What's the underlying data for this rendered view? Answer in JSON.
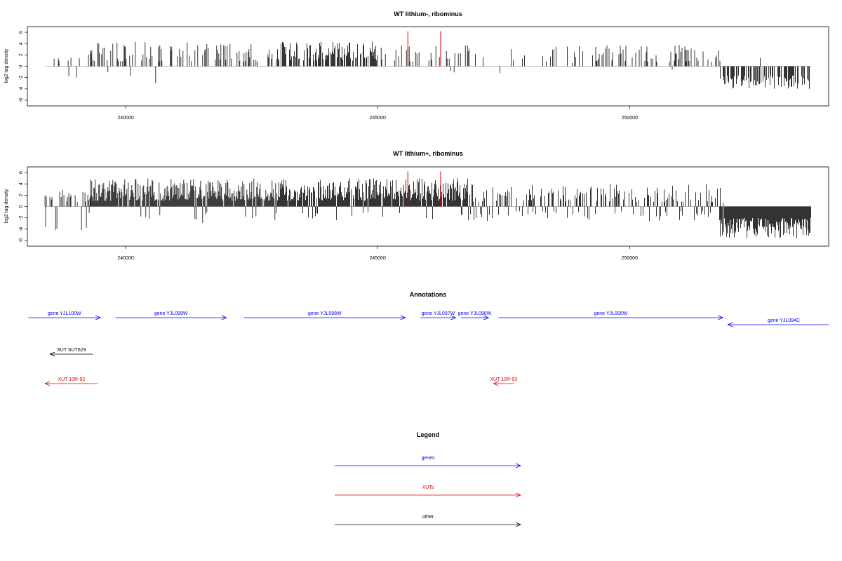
{
  "chart_data": [
    {
      "type": "bar",
      "title": "WT lithium-, ribominus",
      "ylabel": "log2 tag density",
      "xlim": [
        238050,
        253950
      ],
      "ylim": [
        -7,
        7
      ],
      "x_ticks": [
        240000,
        245000,
        250000
      ],
      "y_ticks": [
        -6,
        -4,
        -2,
        0,
        2,
        4,
        6
      ],
      "baseline": 0,
      "bar_color": "#000000",
      "highlight_color": "#dd0000",
      "highlight_x": [
        245600,
        246250
      ],
      "highlight_values": [
        6.2,
        6.2
      ],
      "signal_regions": [
        {
          "from": 238400,
          "to": 239300,
          "sign": 1,
          "density": 0.25,
          "min": 0.8,
          "max": 2.4,
          "neg_fraction": 0.35,
          "neg_min": 1.2,
          "neg_max": 3.4
        },
        {
          "from": 239300,
          "to": 241500,
          "sign": 1,
          "density": 0.55,
          "min": 0.8,
          "max": 4.4,
          "neg_fraction": 0.04,
          "neg_min": 1.0,
          "neg_max": 3.0
        },
        {
          "from": 241500,
          "to": 243000,
          "sign": 1,
          "density": 0.6,
          "min": 0.8,
          "max": 4.0,
          "neg_fraction": 0.02,
          "neg_min": 0.5,
          "neg_max": 2.0
        },
        {
          "from": 243000,
          "to": 245000,
          "sign": 1,
          "density": 1.2,
          "min": 1.0,
          "max": 4.4,
          "neg_fraction": 0.0,
          "neg_min": 0.5,
          "neg_max": 1.0
        },
        {
          "from": 245000,
          "to": 246800,
          "sign": 1,
          "density": 0.55,
          "min": 0.8,
          "max": 4.2,
          "neg_fraction": 0.03,
          "neg_min": 0.5,
          "neg_max": 2.0
        },
        {
          "from": 246800,
          "to": 249300,
          "sign": 1,
          "density": 0.22,
          "min": 0.5,
          "max": 3.6,
          "neg_fraction": 0.05,
          "neg_min": 0.5,
          "neg_max": 1.8
        },
        {
          "from": 249300,
          "to": 251800,
          "sign": 1,
          "density": 0.55,
          "min": 0.8,
          "max": 4.0,
          "neg_fraction": 0.03,
          "neg_min": 0.5,
          "neg_max": 1.6
        },
        {
          "from": 251800,
          "to": 253600,
          "sign": -1,
          "density": 1.1,
          "min": 1.6,
          "max": 4.0,
          "neg_fraction": 0.02,
          "neg_min": 1.0,
          "neg_max": 2.6
        }
      ]
    },
    {
      "type": "bar",
      "title": "WT lithium+, ribominus",
      "ylabel": "log2 tag density",
      "xlim": [
        238050,
        253950
      ],
      "ylim": [
        -7,
        7
      ],
      "x_ticks": [
        240000,
        245000,
        250000
      ],
      "y_ticks": [
        -6,
        -4,
        -2,
        0,
        2,
        4,
        6
      ],
      "baseline": 0,
      "bar_color": "#000000",
      "highlight_color": "#dd0000",
      "highlight_x": [
        245600,
        246250
      ],
      "highlight_values": [
        6.2,
        6.2
      ],
      "signal_regions": [
        {
          "from": 238400,
          "to": 239300,
          "sign": 1,
          "density": 0.6,
          "min": 0.8,
          "max": 3.0,
          "neg_fraction": 0.3,
          "neg_min": 1.0,
          "neg_max": 4.2
        },
        {
          "from": 239300,
          "to": 243000,
          "sign": 1,
          "density": 1.7,
          "min": 1.0,
          "max": 5.0,
          "neg_fraction": 0.05,
          "neg_min": 1.0,
          "neg_max": 3.0
        },
        {
          "from": 243000,
          "to": 246800,
          "sign": 1,
          "density": 1.7,
          "min": 1.0,
          "max": 5.0,
          "neg_fraction": 0.05,
          "neg_min": 1.0,
          "neg_max": 2.4
        },
        {
          "from": 246800,
          "to": 251800,
          "sign": 1,
          "density": 0.9,
          "min": 0.8,
          "max": 4.0,
          "neg_fraction": 0.3,
          "neg_min": 0.8,
          "neg_max": 2.6
        },
        {
          "from": 251800,
          "to": 253600,
          "sign": -1,
          "density": 2.6,
          "min": 2.0,
          "max": 5.6,
          "neg_fraction": 0.02,
          "neg_min": 0.5,
          "neg_max": 1.0
        }
      ]
    }
  ],
  "annotations": {
    "title": "Annotations",
    "xlim": [
      238050,
      253950
    ],
    "features": [
      {
        "label": "gene YJL100W",
        "color": "#0000ff",
        "start": 238070,
        "end": 239500,
        "strand": "+",
        "row": 0
      },
      {
        "label": "gene YJL099W",
        "color": "#0000ff",
        "start": 239800,
        "end": 242000,
        "strand": "+",
        "row": 0
      },
      {
        "label": "gene YJL098W",
        "color": "#0000ff",
        "start": 242350,
        "end": 245550,
        "strand": "+",
        "row": 0
      },
      {
        "label": "gene YJL097W",
        "color": "#0000ff",
        "start": 245850,
        "end": 246550,
        "strand": "+",
        "row": 0
      },
      {
        "label": "gene YJL096W",
        "color": "#0000ff",
        "start": 246650,
        "end": 247200,
        "strand": "+",
        "row": 0
      },
      {
        "label": "gene YJL095W",
        "color": "#0000ff",
        "start": 247400,
        "end": 251850,
        "strand": "+",
        "row": 0
      },
      {
        "label": "gene YJL094C",
        "color": "#0000ff",
        "start": 251950,
        "end": 253950,
        "strand": "-",
        "row": 1
      },
      {
        "label": "SUT SUT629",
        "color": "#000000",
        "start": 238500,
        "end": 239350,
        "strand": "-",
        "row": 2
      },
      {
        "label": "XUT 10R-92",
        "color": "#dd0000",
        "start": 238400,
        "end": 239450,
        "strand": "-",
        "row": 3
      },
      {
        "label": "XUT 10R-93",
        "color": "#dd0000",
        "start": 247300,
        "end": 247700,
        "strand": "-",
        "row": 3
      }
    ]
  },
  "legend": {
    "title": "Legend",
    "items": [
      {
        "label": "genes",
        "color": "#0000ff"
      },
      {
        "label": "XUTs",
        "color": "#dd0000"
      },
      {
        "label": "other",
        "color": "#000000"
      }
    ]
  }
}
